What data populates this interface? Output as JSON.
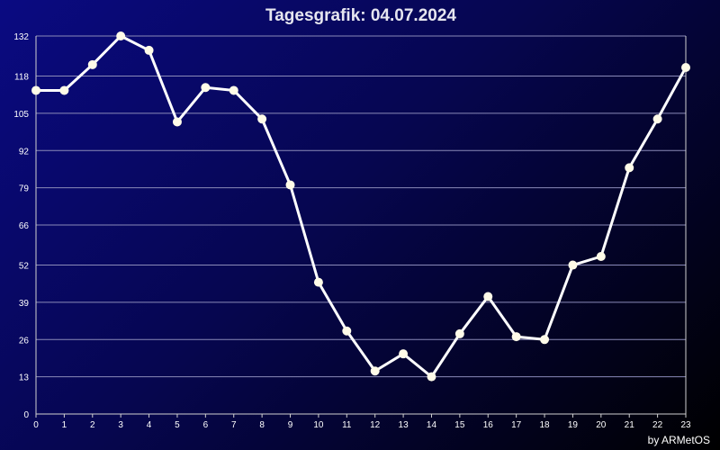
{
  "colors": {
    "background_start": "#0a0a82",
    "background_end": "#000000",
    "title": "#e6e6f0",
    "line": "#ffffff",
    "marker": "#fffbe8",
    "grid": "#8a8ab8",
    "axis": "#d0d0d0",
    "tick_text": "#ffffff"
  },
  "chart_data": {
    "type": "line",
    "title": "Tagesgrafik: 04.07.2024",
    "credit": "by ARMetOS",
    "xlabel": "",
    "ylabel": "",
    "x": [
      0,
      1,
      2,
      3,
      4,
      5,
      6,
      7,
      8,
      9,
      10,
      11,
      12,
      13,
      14,
      15,
      16,
      17,
      18,
      19,
      20,
      21,
      22,
      23
    ],
    "series": [
      {
        "values": [
          113,
          113,
          122,
          132,
          127,
          102,
          114,
          113,
          103,
          80,
          46,
          29,
          15,
          21,
          13,
          28,
          41,
          27,
          26,
          52,
          55,
          86,
          103,
          121
        ]
      }
    ],
    "xlim": [
      0,
      23
    ],
    "ylim": [
      0,
      132
    ],
    "yticks": [
      0,
      13,
      26,
      39,
      52,
      66,
      79,
      92,
      105,
      118,
      132
    ],
    "grid": true,
    "markers": true
  }
}
